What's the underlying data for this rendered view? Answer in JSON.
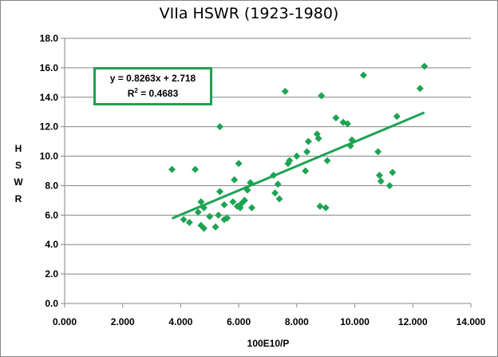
{
  "chart_data": {
    "type": "scatter",
    "title": "VIIa HSWR (1923-1980)",
    "xlabel": "100E10/P",
    "ylabel": "HSWR",
    "xlim": [
      0,
      14
    ],
    "ylim": [
      0,
      18
    ],
    "x_ticks": [
      "0.000",
      "2.000",
      "4.000",
      "6.000",
      "8.000",
      "10.000",
      "12.000",
      "14.000"
    ],
    "y_ticks": [
      "0.0",
      "2.0",
      "4.0",
      "6.0",
      "8.0",
      "10.0",
      "12.0",
      "14.0",
      "16.0",
      "18.0"
    ],
    "grid": "horizontal",
    "marker_color": "#1ea353",
    "trendline": {
      "slope": 0.8263,
      "intercept": 2.718,
      "x_range": [
        3.7,
        12.4
      ],
      "equation": "y = 0.8263x + 2.718",
      "r2_prefix": "R",
      "r2_sup": "2",
      "r2_value": " = 0.4683"
    },
    "points": [
      [
        3.7,
        9.1
      ],
      [
        4.1,
        5.7
      ],
      [
        4.3,
        5.5
      ],
      [
        4.5,
        9.1
      ],
      [
        4.6,
        6.2
      ],
      [
        4.7,
        5.3
      ],
      [
        4.7,
        6.9
      ],
      [
        4.8,
        5.1
      ],
      [
        4.8,
        6.5
      ],
      [
        5.0,
        5.9
      ],
      [
        5.2,
        5.2
      ],
      [
        5.3,
        6.0
      ],
      [
        5.35,
        12.0
      ],
      [
        5.35,
        7.6
      ],
      [
        5.5,
        5.7
      ],
      [
        5.5,
        6.7
      ],
      [
        5.6,
        5.8
      ],
      [
        5.8,
        6.9
      ],
      [
        5.85,
        8.4
      ],
      [
        5.95,
        6.6
      ],
      [
        6.0,
        9.5
      ],
      [
        6.05,
        6.5
      ],
      [
        6.1,
        6.8
      ],
      [
        6.2,
        7.0
      ],
      [
        6.3,
        7.7
      ],
      [
        6.4,
        8.2
      ],
      [
        6.45,
        6.5
      ],
      [
        7.2,
        8.7
      ],
      [
        7.25,
        7.5
      ],
      [
        7.35,
        8.1
      ],
      [
        7.4,
        7.1
      ],
      [
        7.6,
        14.4
      ],
      [
        7.7,
        9.5
      ],
      [
        7.75,
        9.7
      ],
      [
        8.0,
        10.0
      ],
      [
        8.3,
        9.0
      ],
      [
        8.35,
        10.3
      ],
      [
        8.4,
        11.0
      ],
      [
        8.7,
        11.5
      ],
      [
        8.75,
        11.2
      ],
      [
        8.8,
        6.6
      ],
      [
        8.85,
        14.1
      ],
      [
        9.0,
        6.5
      ],
      [
        9.05,
        9.7
      ],
      [
        9.35,
        12.6
      ],
      [
        9.6,
        12.3
      ],
      [
        9.75,
        12.2
      ],
      [
        9.85,
        10.7
      ],
      [
        9.9,
        11.1
      ],
      [
        10.3,
        15.5
      ],
      [
        10.8,
        10.3
      ],
      [
        10.85,
        8.7
      ],
      [
        10.9,
        8.3
      ],
      [
        11.2,
        8.0
      ],
      [
        11.3,
        8.9
      ],
      [
        11.45,
        12.7
      ],
      [
        12.25,
        14.6
      ],
      [
        12.4,
        16.1
      ]
    ]
  }
}
